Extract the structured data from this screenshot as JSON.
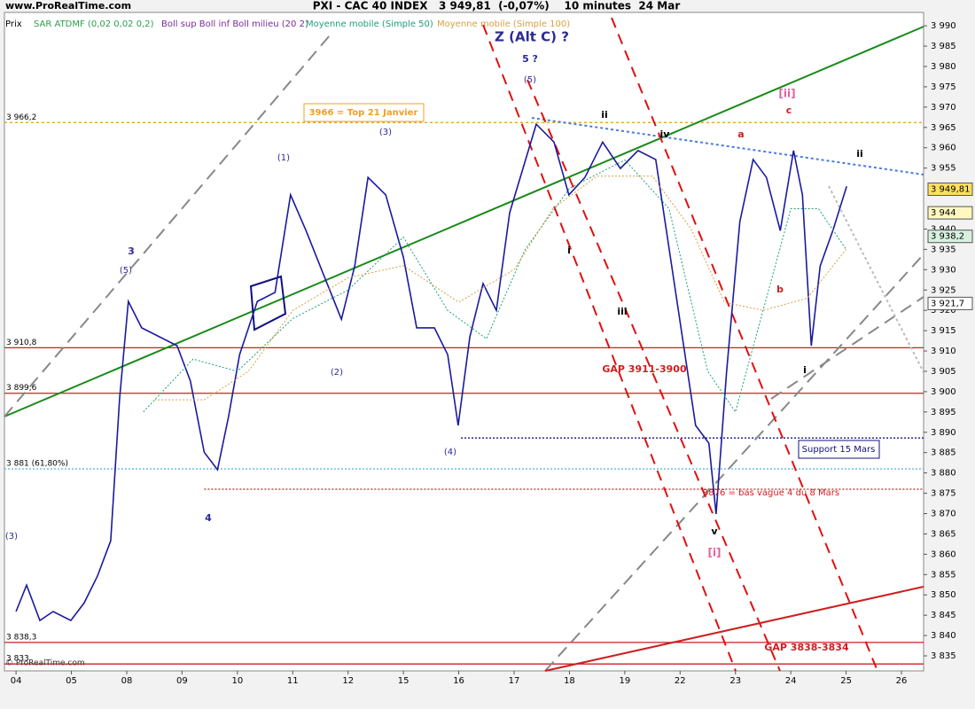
{
  "header": {
    "site": "www.ProRealTime.com",
    "title": "PXI - CAC 40 INDEX   3 949,81  (-0,07%)    10 minutes  24 Mar",
    "watermark": "© ProRealTime.com"
  },
  "legend": {
    "price": "Prix",
    "sar": "SAR ATDMF (0,02 0,02 0,2)",
    "boll": "Boll sup Boll inf Boll milieu (20 2)",
    "ma50": "Moyenne mobile (Simple 50)",
    "ma100": "Moyenne mobile (Simple 100)"
  },
  "annotations": {
    "z": "Z (Alt C) ?",
    "w5q": "5 ?",
    "w5a": "(5)",
    "w3": "3",
    "w5b": "(5)",
    "w1": "(1)",
    "w3b": "(3)",
    "w2": "(2)",
    "w4b": "(4)",
    "w4": "4",
    "w3c": "(3)",
    "ii": "ii",
    "iv": "iv",
    "i": "i",
    "iii": "iii",
    "v": "v",
    "bi": "[i]",
    "a": "a",
    "b": "b",
    "c": "c",
    "bii": "[ii]",
    "ii2": "ii",
    "i2": "i",
    "gap1": "GAP 3911-3900",
    "gap2": "GAP 3838-3834",
    "bas": "3876 = bas vague 4 du 8 Mars",
    "support": "Support 15 Mars",
    "top": "3966 = Top 21 Janvier"
  },
  "chart_data": {
    "type": "line",
    "xlim": [
      -0.21,
      16.4
    ],
    "ylim": [
      3831.3,
      3993.3
    ],
    "xticks": [
      {
        "value": 0,
        "label": "04"
      },
      {
        "value": 1,
        "label": "05"
      },
      {
        "value": 2,
        "label": "08"
      },
      {
        "value": 3,
        "label": "09"
      },
      {
        "value": 4,
        "label": "10"
      },
      {
        "value": 5,
        "label": "11"
      },
      {
        "value": 6,
        "label": "12"
      },
      {
        "value": 7,
        "label": "15"
      },
      {
        "value": 8,
        "label": "16"
      },
      {
        "value": 9,
        "label": "17"
      },
      {
        "value": 10,
        "label": "18"
      },
      {
        "value": 11,
        "label": "19"
      },
      {
        "value": 12,
        "label": "22"
      },
      {
        "value": 13,
        "label": "23"
      },
      {
        "value": 14,
        "label": "24"
      },
      {
        "value": 15,
        "label": "25"
      },
      {
        "value": 16,
        "label": "26"
      }
    ],
    "yticks": [
      {
        "value": 3835,
        "label": "3 835"
      },
      {
        "value": 3840,
        "label": "3 840"
      },
      {
        "value": 3845,
        "label": "3 845"
      },
      {
        "value": 3850,
        "label": "3 850"
      },
      {
        "value": 3855,
        "label": "3 855"
      },
      {
        "value": 3860,
        "label": "3 860"
      },
      {
        "value": 3865,
        "label": "3 865"
      },
      {
        "value": 3870,
        "label": "3 870"
      },
      {
        "value": 3875,
        "label": "3 875"
      },
      {
        "value": 3880,
        "label": "3 880"
      },
      {
        "value": 3885,
        "label": "3 885"
      },
      {
        "value": 3890,
        "label": "3 890"
      },
      {
        "value": 3895,
        "label": "3 895"
      },
      {
        "value": 3900,
        "label": "3 900"
      },
      {
        "value": 3905,
        "label": "3 905"
      },
      {
        "value": 3910,
        "label": "3 910"
      },
      {
        "value": 3915,
        "label": "3 915"
      },
      {
        "value": 3920,
        "label": "3 920"
      },
      {
        "value": 3925,
        "label": "3 925"
      },
      {
        "value": 3930,
        "label": "3 930"
      },
      {
        "value": 3935,
        "label": "3 935"
      },
      {
        "value": 3940,
        "label": "3 940"
      },
      {
        "value": 3955,
        "label": "3 955"
      },
      {
        "value": 3960,
        "label": "3 960"
      },
      {
        "value": 3965,
        "label": "3 965"
      },
      {
        "value": 3970,
        "label": "3 970"
      },
      {
        "value": 3975,
        "label": "3 975"
      },
      {
        "value": 3980,
        "label": "3 980"
      },
      {
        "value": 3985,
        "label": "3 985"
      },
      {
        "value": 3990,
        "label": "3 990"
      }
    ],
    "series": [
      {
        "name": "Prix",
        "color": "#1a1aa0",
        "x": [
          0,
          0.19,
          0.43,
          0.67,
          0.99,
          1.23,
          1.47,
          1.71,
          1.87,
          2.03,
          2.27,
          2.59,
          2.91,
          3.15,
          3.4,
          3.64,
          3.84,
          4.04,
          4.36,
          4.68,
          4.96,
          5.24,
          5.56,
          5.88,
          6.12,
          6.36,
          6.68,
          7.0,
          7.24,
          7.56,
          7.8,
          7.99,
          8.2,
          8.44,
          8.68,
          8.92,
          9.16,
          9.4,
          9.72,
          9.99,
          10.28,
          10.6,
          10.92,
          11.24,
          11.56,
          11.8,
          12.04,
          12.28,
          12.52,
          12.65,
          12.84,
          13.08,
          13.32,
          13.56,
          13.81,
          14.05,
          14.21,
          14.37,
          14.53,
          14.76,
          15.01
        ],
        "values": [
          3845.9,
          3852.4,
          3843.7,
          3845.9,
          3843.7,
          3848,
          3854.6,
          3863.3,
          3898.2,
          3922.2,
          3915.7,
          3913.5,
          3911.3,
          3902.6,
          3885.1,
          3880.8,
          3893.9,
          3909.1,
          3922.2,
          3924.4,
          3948.4,
          3939.6,
          3928.7,
          3917.8,
          3930.9,
          3952.7,
          3948.4,
          3933.1,
          3915.7,
          3915.7,
          3909.1,
          3891.7,
          3913.5,
          3926.6,
          3920,
          3944,
          3954.9,
          3965.8,
          3961.4,
          3948.4,
          3952.7,
          3961.4,
          3954.9,
          3959.3,
          3957.1,
          3935.3,
          3913.5,
          3891.7,
          3887.3,
          3869.9,
          3904.8,
          3941.8,
          3957.1,
          3952.7,
          3939.6,
          3959.3,
          3948.4,
          3911.3,
          3930.9,
          3939.6,
          3950.5
        ]
      },
      {
        "name": "Moyenne mobile (Simple 50)",
        "color": "#1aa07a",
        "x": [
          2.3,
          3.2,
          4.0,
          5.0,
          6.0,
          7.0,
          7.8,
          8.5,
          9.2,
          10.0,
          11.0,
          11.8,
          12.5,
          13.0,
          13.5,
          14.0,
          14.5,
          15.0
        ],
        "values": [
          3895,
          3908,
          3905,
          3918,
          3925,
          3938,
          3920,
          3913,
          3935,
          3950,
          3957,
          3945,
          3905,
          3895,
          3920,
          3945,
          3945,
          3935
        ]
      },
      {
        "name": "Moyenne mobile (Simple 100)",
        "color": "#d9a040",
        "x": [
          2.5,
          3.4,
          4.2,
          5.0,
          6.0,
          7.0,
          8.0,
          9.0,
          9.7,
          10.5,
          11.5,
          12.2,
          12.8,
          13.5,
          14.3,
          15.0
        ],
        "values": [
          3898,
          3898,
          3905,
          3920,
          3928,
          3931,
          3922,
          3930,
          3945,
          3953,
          3953,
          3940,
          3922,
          3920,
          3923,
          3935
        ]
      }
    ],
    "levels": [
      {
        "value": 3966.2,
        "label": "3 966,2",
        "color": "#f0a020",
        "dash": "3 3"
      },
      {
        "value": 3910.8,
        "label": "3 910,8",
        "color": "#cc2020"
      },
      {
        "value": 3899.6,
        "label": "3 899,6",
        "color": "#cc2020"
      },
      {
        "value": 3881,
        "label": "3 881 (61,80%)",
        "color": "#60b8e0",
        "dash": "2 2"
      },
      {
        "value": 3876,
        "color": "#cc2020",
        "dash": "2 2",
        "x_start": 3.4
      },
      {
        "value": 3888.6,
        "color": "#101080",
        "dash": "2 2",
        "x_start": 8.04
      },
      {
        "value": 3838.3,
        "label": "3 838,3",
        "color": "#cc2020"
      },
      {
        "value": 3833,
        "label": "3 833",
        "color": "#cc2020"
      }
    ],
    "price_tags": [
      {
        "value": 3949.81,
        "label": "3 949,81",
        "color": "#ffe060"
      },
      {
        "value": 3944,
        "label": "3 944",
        "color": "#fff8c0"
      },
      {
        "value": 3938.2,
        "label": "3 938,2",
        "color": "#d8f0e0"
      },
      {
        "value": 3921.7,
        "label": "3 921,7",
        "color": "#ffffff"
      }
    ]
  }
}
